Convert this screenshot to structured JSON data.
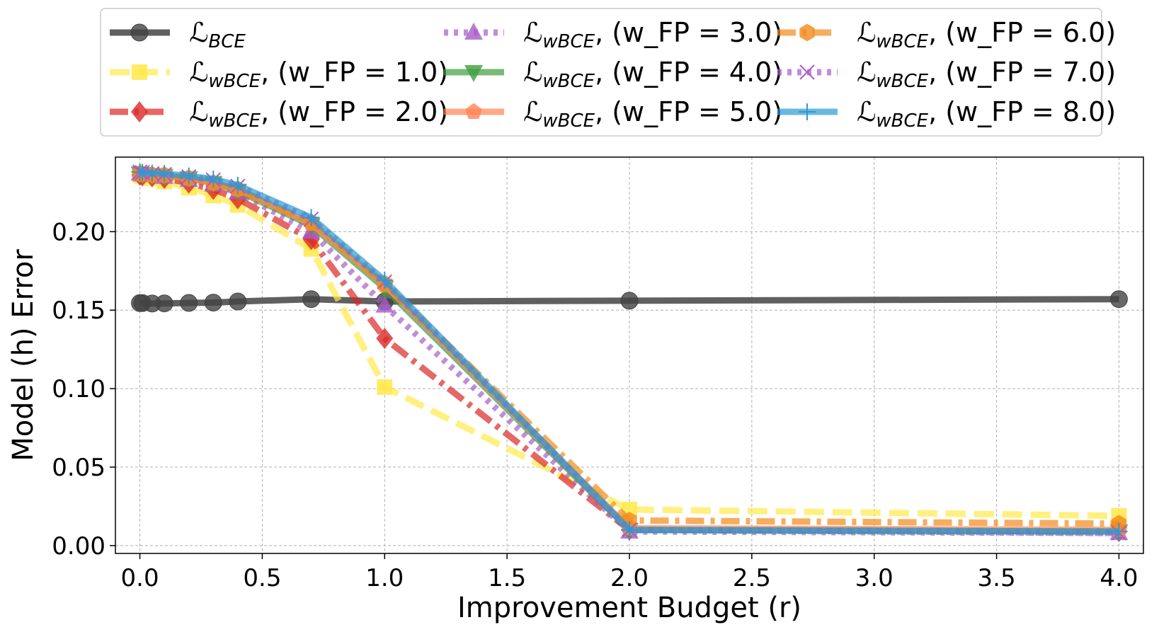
{
  "chart_data": {
    "type": "line",
    "xlabel": "Improvement Budget (r)",
    "ylabel": "Model (h) Error",
    "xlim": [
      -0.1,
      4.1
    ],
    "ylim": [
      -0.005,
      0.2475
    ],
    "xticks": [
      0.0,
      0.5,
      1.0,
      1.5,
      2.0,
      2.5,
      3.0,
      3.5,
      4.0
    ],
    "yticks": [
      0.0,
      0.05,
      0.1,
      0.15,
      0.2
    ],
    "xtick_labels": [
      "0.0",
      "0.5",
      "1.0",
      "1.5",
      "2.0",
      "2.5",
      "3.0",
      "3.5",
      "4.0"
    ],
    "ytick_labels": [
      "0.00",
      "0.05",
      "0.10",
      "0.15",
      "0.20"
    ],
    "grid": true,
    "legend_location": "top, above plot, 3 columns",
    "x": [
      0.0,
      0.01,
      0.05,
      0.1,
      0.2,
      0.3,
      0.4,
      0.7,
      1.0,
      2.0,
      4.0
    ],
    "series": [
      {
        "name": "L_BCE",
        "label_main": "ℒ",
        "label_sub": "BCE",
        "label_rest": "",
        "color": "#444444",
        "dash": "solid",
        "marker": "circle",
        "values": [
          0.1545,
          0.1545,
          0.1542,
          0.1543,
          0.1546,
          0.1548,
          0.1555,
          0.157,
          0.1555,
          0.156,
          0.157
        ]
      },
      {
        "name": "L_wBCE (w_FP = 1.0)",
        "label_main": "ℒ",
        "label_sub": "wBCE",
        "label_rest": ", (w_FP = 1.0)",
        "color": "#ffe94a",
        "dash": "dashed",
        "marker": "square",
        "values": [
          0.236,
          0.2355,
          0.234,
          0.232,
          0.228,
          0.223,
          0.217,
          0.189,
          0.101,
          0.023,
          0.019
        ]
      },
      {
        "name": "L_wBCE (w_FP = 2.0)",
        "label_main": "ℒ",
        "label_sub": "wBCE",
        "label_rest": ", (w_FP = 2.0)",
        "color": "#dc2727",
        "dash": "dashdot",
        "marker": "diamond",
        "values": [
          0.236,
          0.2355,
          0.235,
          0.234,
          0.231,
          0.227,
          0.221,
          0.195,
          0.132,
          0.01,
          0.009
        ]
      },
      {
        "name": "L_wBCE (w_FP = 3.0)",
        "label_main": "ℒ",
        "label_sub": "wBCE",
        "label_rest": ", (w_FP = 3.0)",
        "color": "#a65cc8",
        "dash": "dotted",
        "marker": "triangle-up",
        "values": [
          0.237,
          0.2365,
          0.236,
          0.235,
          0.233,
          0.23,
          0.225,
          0.2,
          0.153,
          0.009,
          0.008
        ]
      },
      {
        "name": "L_wBCE (w_FP = 4.0)",
        "label_main": "ℒ",
        "label_sub": "wBCE",
        "label_rest": ", (w_FP = 4.0)",
        "color": "#3f9d3f",
        "dash": "solid",
        "marker": "triangle-down",
        "values": [
          0.237,
          0.2366,
          0.236,
          0.2355,
          0.234,
          0.231,
          0.226,
          0.204,
          0.164,
          0.01,
          0.009
        ]
      },
      {
        "name": "L_wBCE (w_FP = 5.0)",
        "label_main": "ℒ",
        "label_sub": "wBCE",
        "label_rest": ", (w_FP = 5.0)",
        "color": "#ff8455",
        "dash": "solid",
        "marker": "pentagon",
        "values": [
          0.237,
          0.2366,
          0.236,
          0.236,
          0.234,
          0.231,
          0.227,
          0.205,
          0.166,
          0.011,
          0.01
        ]
      },
      {
        "name": "L_wBCE (w_FP = 6.0)",
        "label_main": "ℒ",
        "label_sub": "wBCE",
        "label_rest": ", (w_FP = 6.0)",
        "color": "#f28a1a",
        "dash": "dashdot",
        "marker": "hexagon",
        "values": [
          0.237,
          0.2367,
          0.2362,
          0.236,
          0.234,
          0.231,
          0.227,
          0.206,
          0.167,
          0.016,
          0.014
        ]
      },
      {
        "name": "L_wBCE (w_FP = 7.0)",
        "label_main": "ℒ",
        "label_sub": "wBCE",
        "label_rest": ", (w_FP = 7.0)",
        "color": "#a65cc8",
        "dash": "dotted",
        "marker": "x",
        "values": [
          0.238,
          0.2377,
          0.237,
          0.2365,
          0.235,
          0.233,
          0.229,
          0.208,
          0.168,
          0.01,
          0.008
        ]
      },
      {
        "name": "L_wBCE (w_FP = 8.0)",
        "label_main": "ℒ",
        "label_sub": "wBCE",
        "label_rest": ", (w_FP = 8.0)",
        "color": "#2a9ad6",
        "dash": "solid",
        "marker": "plus",
        "values": [
          0.238,
          0.2378,
          0.2373,
          0.237,
          0.2355,
          0.2335,
          0.2295,
          0.209,
          0.169,
          0.01,
          0.009
        ]
      }
    ]
  }
}
